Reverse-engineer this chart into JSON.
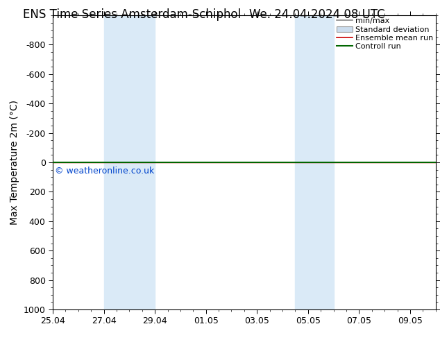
{
  "title_left": "ENS Time Series Amsterdam-Schiphol",
  "title_right": "We. 24.04.2024 08 UTC",
  "ylabel": "Max Temperature 2m (°C)",
  "ylim_bottom": -1000,
  "ylim_top": 1000,
  "yticks": [
    -800,
    -600,
    -400,
    -200,
    0,
    200,
    400,
    600,
    800,
    1000
  ],
  "xtick_labels": [
    "25.04",
    "27.04",
    "29.04",
    "01.05",
    "03.05",
    "05.05",
    "07.05",
    "09.05"
  ],
  "xtick_positions": [
    0,
    2,
    4,
    6,
    8,
    10,
    12,
    14
  ],
  "xlim": [
    0,
    15
  ],
  "weekend_bands": [
    {
      "xstart": 2,
      "xend": 4
    },
    {
      "xstart": 9.5,
      "xend": 11
    }
  ],
  "weekend_color": "#daeaf7",
  "control_run_y": 0,
  "ensemble_mean_y": 0,
  "watermark": "© weatheronline.co.uk",
  "watermark_color": "#0044cc",
  "bg_color": "#ffffff",
  "title_fontsize": 12,
  "axis_label_fontsize": 10,
  "tick_fontsize": 9,
  "legend_fontsize": 8
}
